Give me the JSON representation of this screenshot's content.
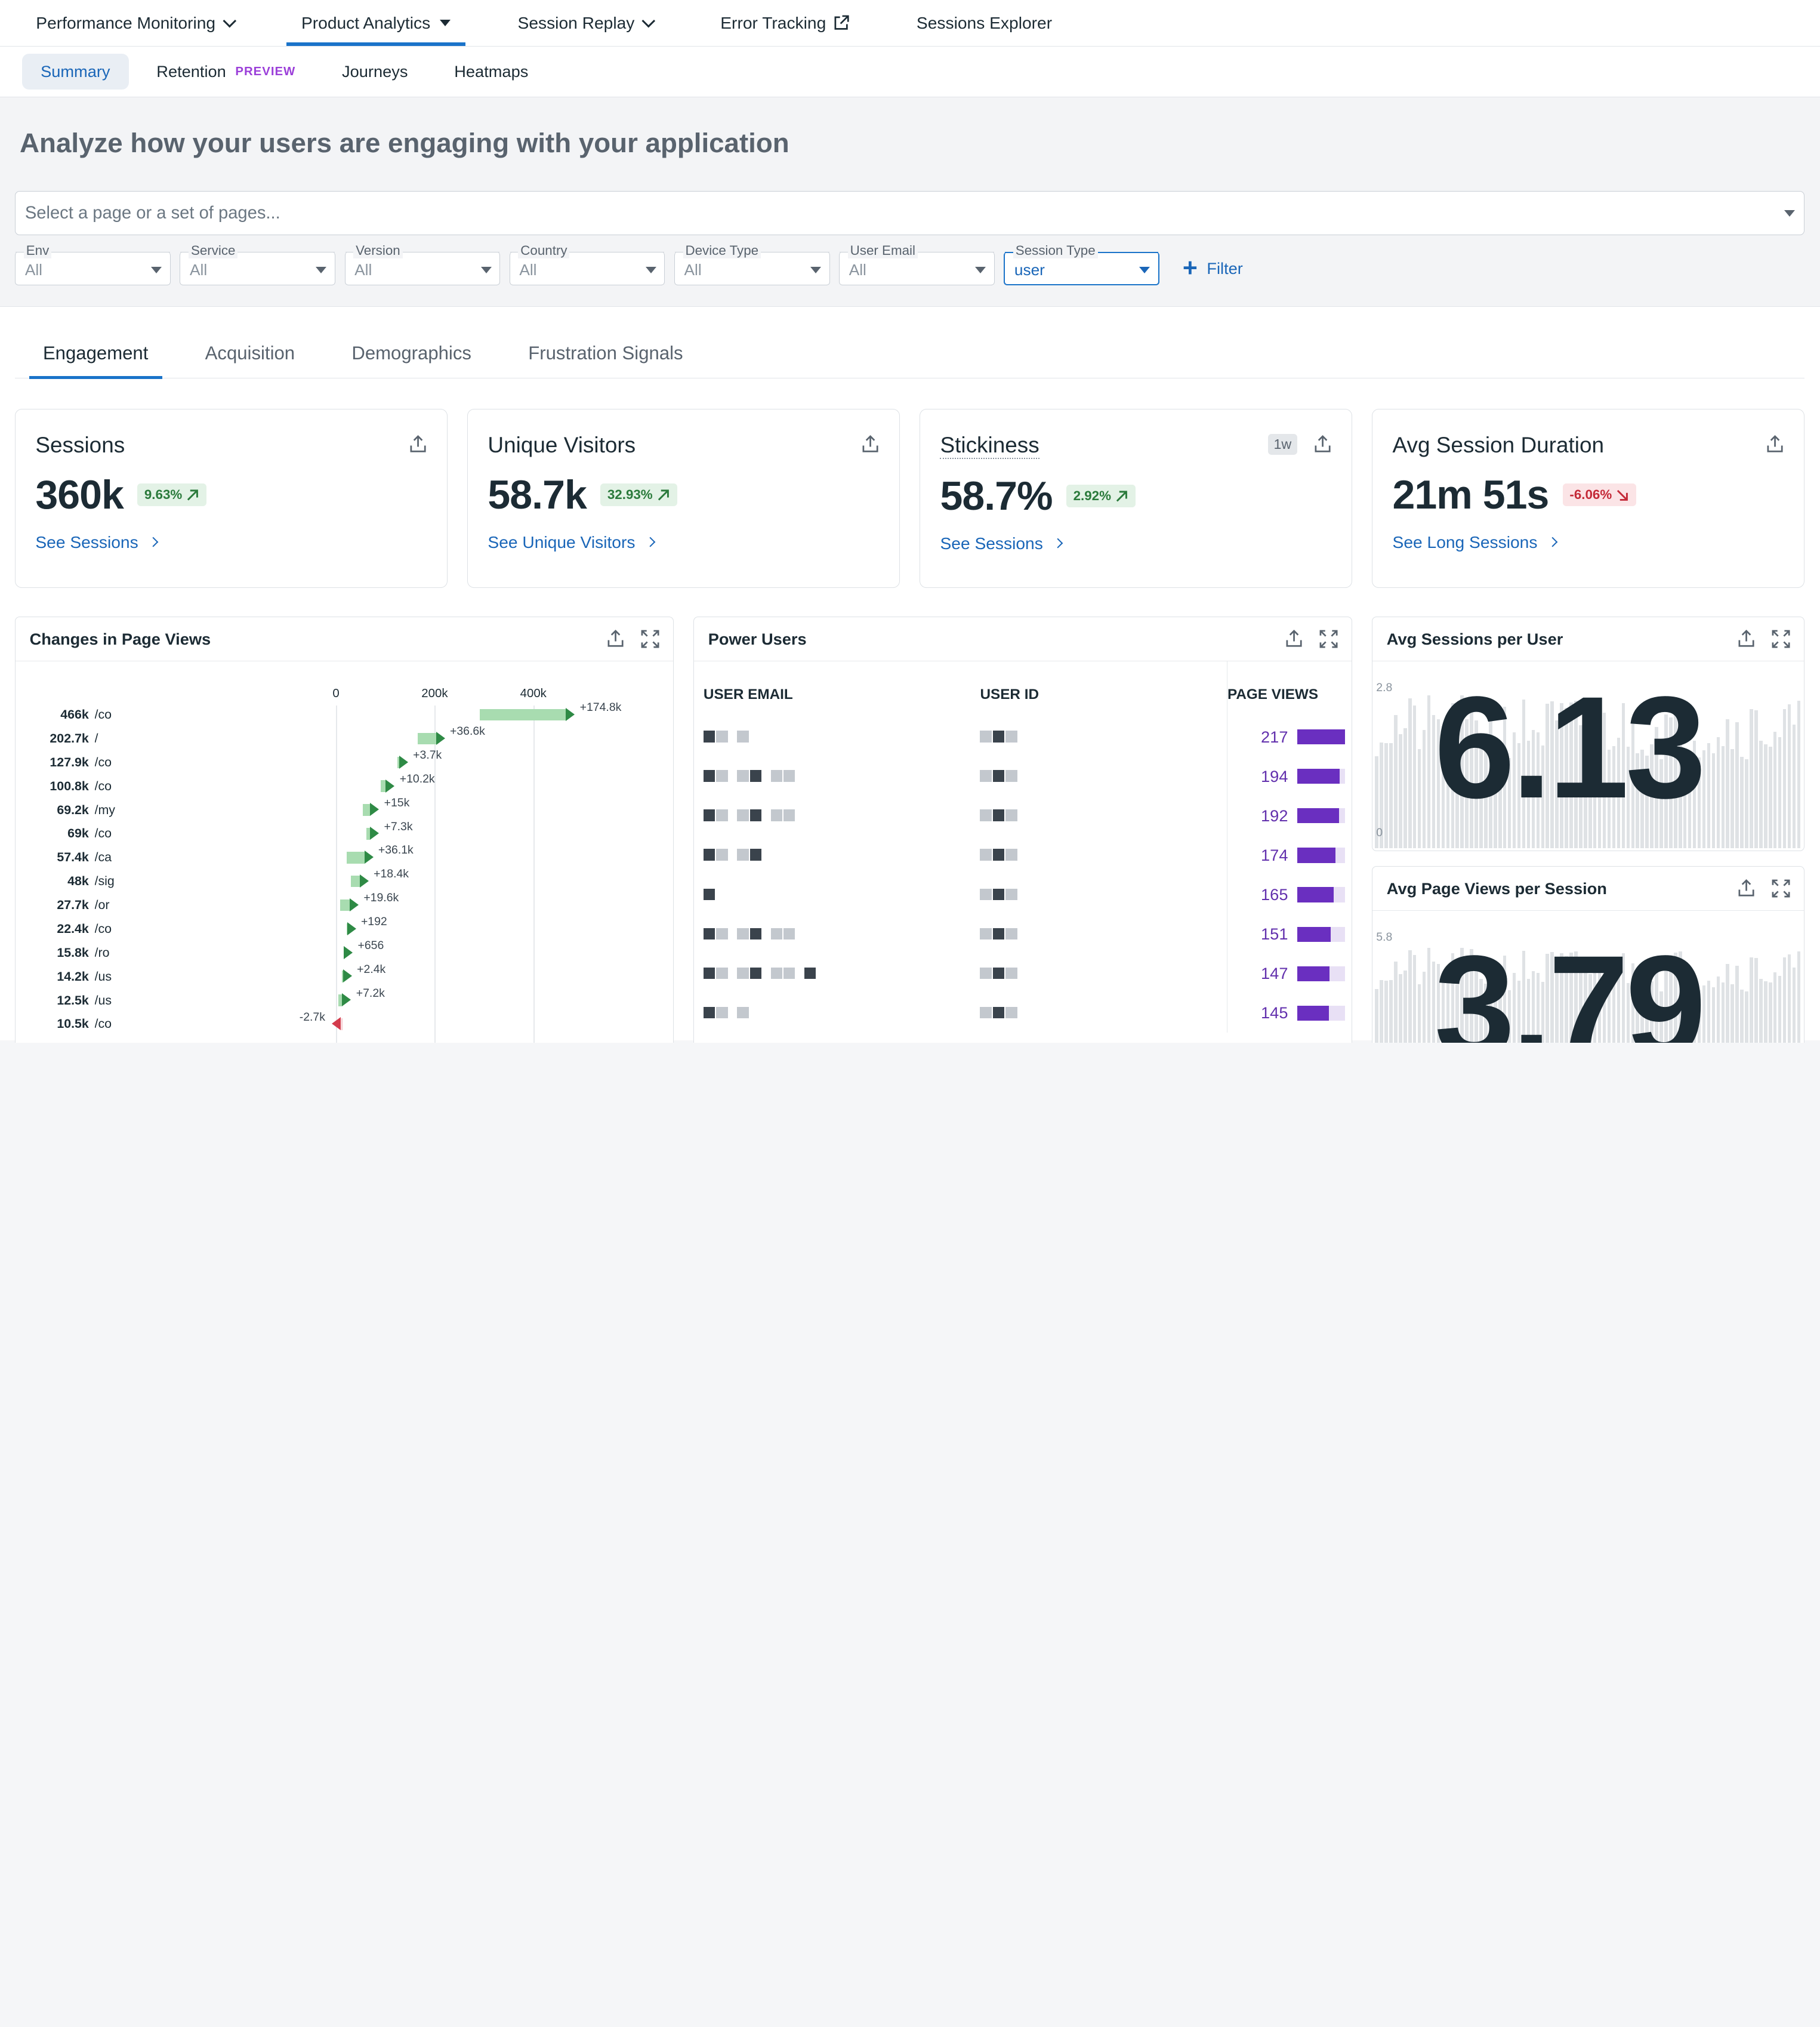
{
  "topnav": {
    "items": [
      {
        "label": "Performance Monitoring",
        "suffix": "chevron"
      },
      {
        "label": "Product Analytics",
        "suffix": "caret",
        "active": true
      },
      {
        "label": "Session Replay",
        "suffix": "chevron"
      },
      {
        "label": "Error Tracking",
        "suffix": "external"
      },
      {
        "label": "Sessions Explorer",
        "suffix": ""
      }
    ]
  },
  "subnav": {
    "summary": "Summary",
    "retention": "Retention",
    "retention_badge": "PREVIEW",
    "journeys": "Journeys",
    "heatmaps": "Heatmaps"
  },
  "header": {
    "title": "Analyze how your users are engaging with your application",
    "page_select_placeholder": "Select a page or a set of pages..."
  },
  "filters": {
    "env": {
      "label": "Env",
      "value": "All"
    },
    "service": {
      "label": "Service",
      "value": "All"
    },
    "version": {
      "label": "Version",
      "value": "All"
    },
    "country": {
      "label": "Country",
      "value": "All"
    },
    "device_type": {
      "label": "Device Type",
      "value": "All"
    },
    "user_email": {
      "label": "User Email",
      "value": "All"
    },
    "session_type": {
      "label": "Session Type",
      "value": "user"
    },
    "add_filter": "Filter"
  },
  "tabs": {
    "engagement": "Engagement",
    "acquisition": "Acquisition",
    "demographics": "Demographics",
    "frustration": "Frustration Signals"
  },
  "kpis": {
    "sessions": {
      "title": "Sessions",
      "value": "360k",
      "delta": "9.63%",
      "link": "See Sessions"
    },
    "unique_visitors": {
      "title": "Unique Visitors",
      "value": "58.7k",
      "delta": "32.93%",
      "link": "See Unique Visitors"
    },
    "stickiness": {
      "title": "Stickiness",
      "badge": "1w",
      "value": "58.7%",
      "delta": "2.92%",
      "link": "See Sessions"
    },
    "avg_session_duration": {
      "title": "Avg Session Duration",
      "value": "21m 51s",
      "delta": "-6.06%",
      "link": "See Long Sessions"
    }
  },
  "changes_widget": {
    "title": "Changes in Page Views",
    "axis": [
      "0",
      "200k",
      "400k"
    ],
    "rows": [
      {
        "views": "466k",
        "path": "/co",
        "change": "+174.8k"
      },
      {
        "views": "202.7k",
        "path": "/",
        "change": "+36.6k"
      },
      {
        "views": "127.9k",
        "path": "/co",
        "change": "+3.7k"
      },
      {
        "views": "100.8k",
        "path": "/co",
        "change": "+10.2k"
      },
      {
        "views": "69.2k",
        "path": "/my",
        "change": "+15k"
      },
      {
        "views": "69k",
        "path": "/co",
        "change": "+7.3k"
      },
      {
        "views": "57.4k",
        "path": "/ca",
        "change": "+36.1k"
      },
      {
        "views": "48k",
        "path": "/sig",
        "change": "+18.4k"
      },
      {
        "views": "27.7k",
        "path": "/or",
        "change": "+19.6k"
      },
      {
        "views": "22.4k",
        "path": "/co",
        "change": "+192"
      },
      {
        "views": "15.8k",
        "path": "/ro",
        "change": "+656"
      },
      {
        "views": "14.2k",
        "path": "/us",
        "change": "+2.4k"
      },
      {
        "views": "12.5k",
        "path": "/us",
        "change": "+7.2k"
      },
      {
        "views": "10.5k",
        "path": "/co",
        "change": "-2.7k"
      }
    ]
  },
  "power_users": {
    "title": "Power Users",
    "col_email": "USER EMAIL",
    "col_id": "USER ID",
    "col_views": "PAGE VIEWS",
    "rows": [
      {
        "views": "217",
        "fill": 1.0
      },
      {
        "views": "194",
        "fill": 0.89
      },
      {
        "views": "192",
        "fill": 0.88
      },
      {
        "views": "174",
        "fill": 0.8
      },
      {
        "views": "165",
        "fill": 0.76
      },
      {
        "views": "151",
        "fill": 0.7
      },
      {
        "views": "147",
        "fill": 0.68
      },
      {
        "views": "145",
        "fill": 0.67
      }
    ]
  },
  "avg_sessions": {
    "title": "Avg Sessions per User",
    "value": "6.13",
    "y_max": "2.8",
    "y_min": "0"
  },
  "avg_pageviews": {
    "title": "Avg Page Views per Session",
    "value": "3.79",
    "y_max": "5.8"
  },
  "colors": {
    "accent": "#1a73c9",
    "purple": "#6a2fc0",
    "green": "#2a7a3b",
    "red": "#c42a38"
  }
}
